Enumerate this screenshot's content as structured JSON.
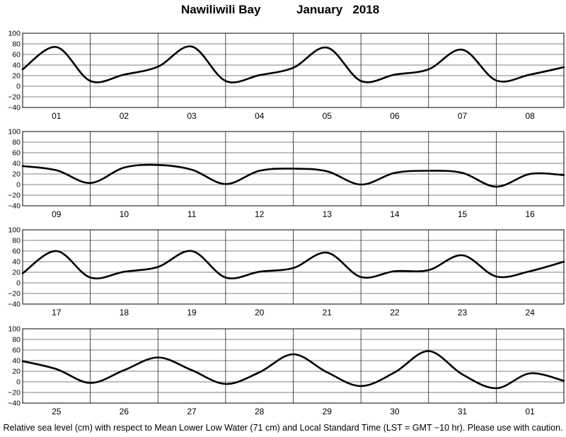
{
  "title": {
    "station": "Nawiliwili Bay",
    "month": "January   2018"
  },
  "caption": "Relative sea level (cm) with respect to Mean Lower Low Water (71 cm) and Local Standard Time (LST = GMT −10 hr). Please use with caution.",
  "chart_data": [
    {
      "type": "line",
      "panel": 1,
      "ylim": [
        -40,
        100
      ],
      "yticks": [
        "−40",
        "−20",
        "0",
        "20",
        "40",
        "60",
        "80",
        "100"
      ],
      "categories": [
        "01",
        "02",
        "03",
        "04",
        "05",
        "06",
        "07",
        "08"
      ],
      "grid": "vertical day boundaries",
      "series": [
        {
          "x": [
            0,
            0.5,
            1,
            1.5,
            2,
            2.5,
            3,
            3.5,
            4,
            4.5,
            5,
            5.5,
            6,
            6.5,
            7,
            7.5,
            8
          ],
          "y": [
            32,
            74,
            10,
            22,
            37,
            75,
            10,
            21,
            35,
            73,
            10,
            22,
            32,
            69,
            11,
            22,
            36
          ]
        }
      ]
    },
    {
      "type": "line",
      "panel": 2,
      "ylim": [
        -40,
        100
      ],
      "yticks": [
        "−40",
        "−20",
        "0",
        "20",
        "40",
        "60",
        "80",
        "100"
      ],
      "categories": [
        "09",
        "10",
        "11",
        "12",
        "13",
        "14",
        "15",
        "16"
      ],
      "grid": "vertical day boundaries",
      "series": [
        {
          "x": [
            0,
            0.5,
            1,
            1.5,
            2,
            2.5,
            3,
            3.5,
            4,
            4.5,
            5,
            5.5,
            6,
            6.5,
            7,
            7.5,
            8
          ],
          "y": [
            35,
            27,
            3,
            32,
            37,
            28,
            1,
            26,
            30,
            25,
            0,
            22,
            26,
            22,
            -4,
            20,
            18
          ]
        }
      ]
    },
    {
      "type": "line",
      "panel": 3,
      "ylim": [
        -40,
        100
      ],
      "yticks": [
        "−40",
        "−20",
        "0",
        "20",
        "40",
        "60",
        "80",
        "100"
      ],
      "categories": [
        "17",
        "18",
        "19",
        "20",
        "21",
        "22",
        "23",
        "24"
      ],
      "grid": "vertical day boundaries",
      "series": [
        {
          "x": [
            0,
            0.5,
            1,
            1.5,
            2,
            2.5,
            3,
            3.5,
            4,
            4.5,
            5,
            5.5,
            6,
            6.5,
            7,
            7.5,
            8
          ],
          "y": [
            18,
            60,
            10,
            21,
            30,
            60,
            10,
            21,
            28,
            57,
            11,
            22,
            24,
            52,
            12,
            22,
            40
          ]
        }
      ]
    },
    {
      "type": "line",
      "panel": 4,
      "ylim": [
        -40,
        100
      ],
      "yticks": [
        "−40",
        "−20",
        "0",
        "20",
        "40",
        "60",
        "80",
        "100"
      ],
      "categories": [
        "25",
        "26",
        "27",
        "28",
        "29",
        "30",
        "31",
        "01"
      ],
      "grid": "vertical day boundaries",
      "series": [
        {
          "x": [
            0,
            0.5,
            1,
            1.5,
            2,
            2.5,
            3,
            3.5,
            4,
            4.5,
            5,
            5.5,
            6,
            6.5,
            7,
            7.5,
            8
          ],
          "y": [
            39,
            24,
            -2,
            22,
            46,
            22,
            -4,
            18,
            52,
            18,
            -8,
            18,
            58,
            14,
            -12,
            16,
            2
          ]
        }
      ]
    }
  ]
}
